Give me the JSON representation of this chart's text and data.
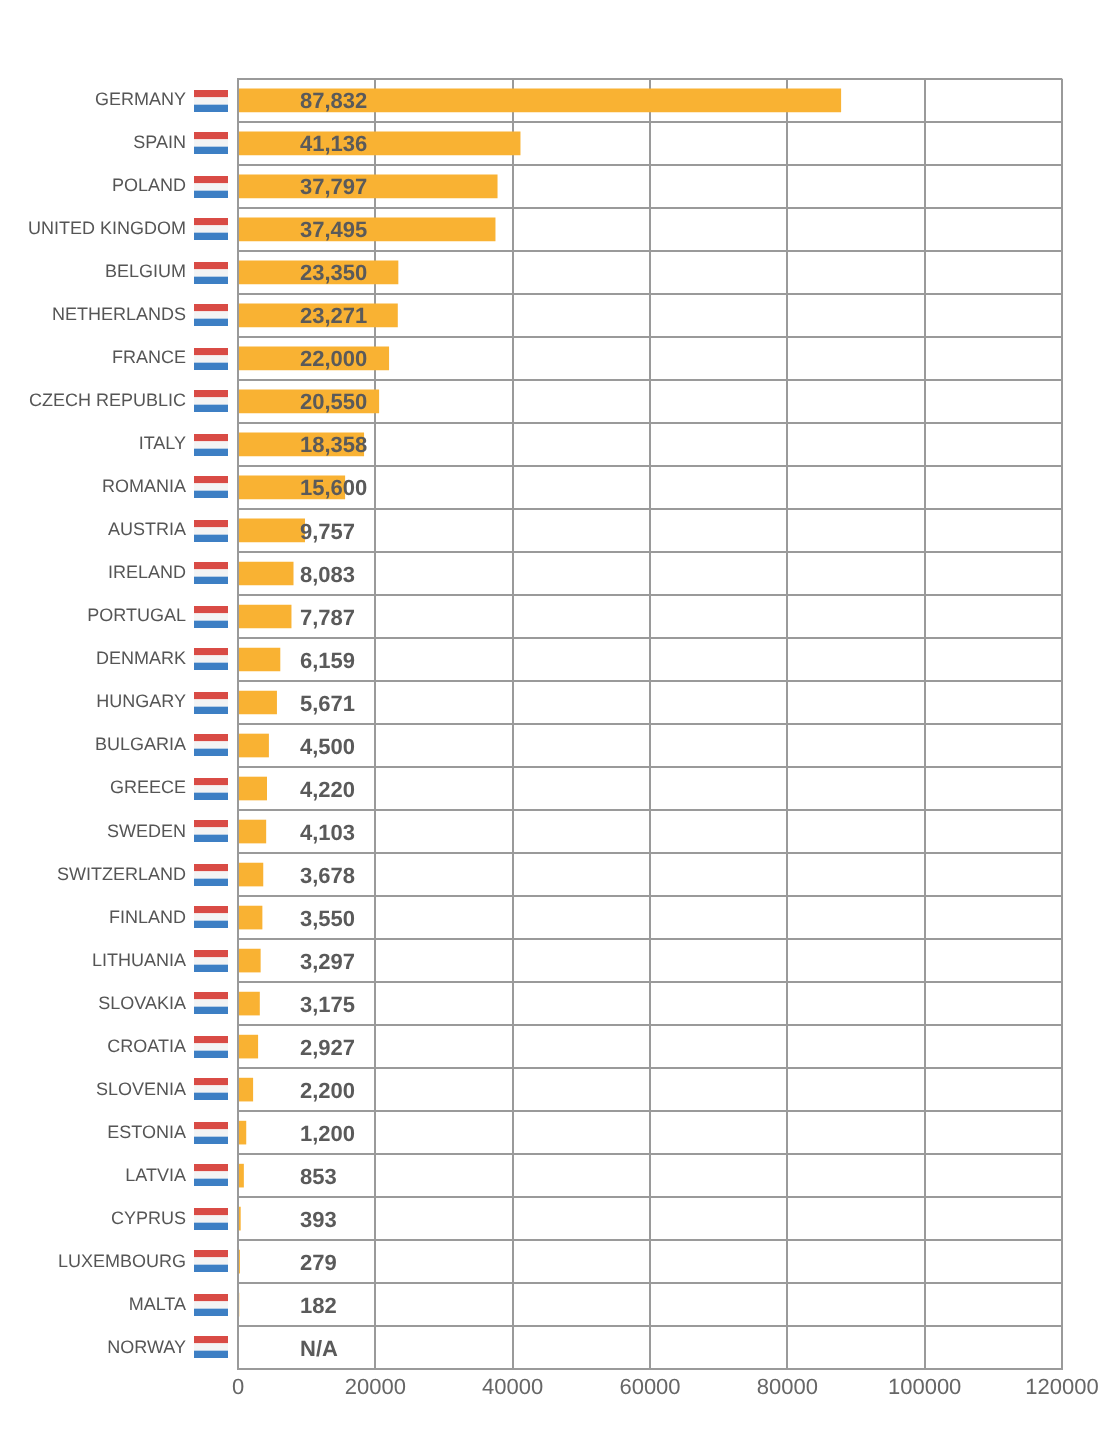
{
  "chart_data": {
    "type": "bar",
    "orientation": "horizontal",
    "categories": [
      "GERMANY",
      "SPAIN",
      "POLAND",
      "UNITED KINGDOM",
      "BELGIUM",
      "NETHERLANDS",
      "FRANCE",
      "CZECH REPUBLIC",
      "ITALY",
      "ROMANIA",
      "AUSTRIA",
      "IRELAND",
      "PORTUGAL",
      "DENMARK",
      "HUNGARY",
      "BULGARIA",
      "GREECE",
      "SWEDEN",
      "SWITZERLAND",
      "FINLAND",
      "LITHUANIA",
      "SLOVAKIA",
      "CROATIA",
      "SLOVENIA",
      "ESTONIA",
      "LATVIA",
      "CYPRUS",
      "LUXEMBOURG",
      "MALTA",
      "NORWAY"
    ],
    "values": [
      87832,
      41136,
      37797,
      37495,
      23350,
      23271,
      22000,
      20550,
      18358,
      15600,
      9757,
      8083,
      7787,
      6159,
      5671,
      4500,
      4220,
      4103,
      3678,
      3550,
      3297,
      3175,
      2927,
      2200,
      1200,
      853,
      393,
      279,
      182,
      null
    ],
    "value_labels": [
      "87,832",
      "41,136",
      "37,797",
      "37,495",
      "23,350",
      "23,271",
      "22,000",
      "20,550",
      "18,358",
      "15,600",
      "9,757",
      "8,083",
      "7,787",
      "6,159",
      "5,671",
      "4,500",
      "4,220",
      "4,103",
      "3,678",
      "3,550",
      "3,297",
      "3,175",
      "2,927",
      "2,200",
      "1,200",
      "853",
      "393",
      "279",
      "182",
      "N/A"
    ],
    "color": "#f9b233",
    "xlim": [
      0,
      120000
    ],
    "xticks": [
      0,
      20000,
      40000,
      60000,
      80000,
      100000,
      120000
    ],
    "grid": true
  }
}
